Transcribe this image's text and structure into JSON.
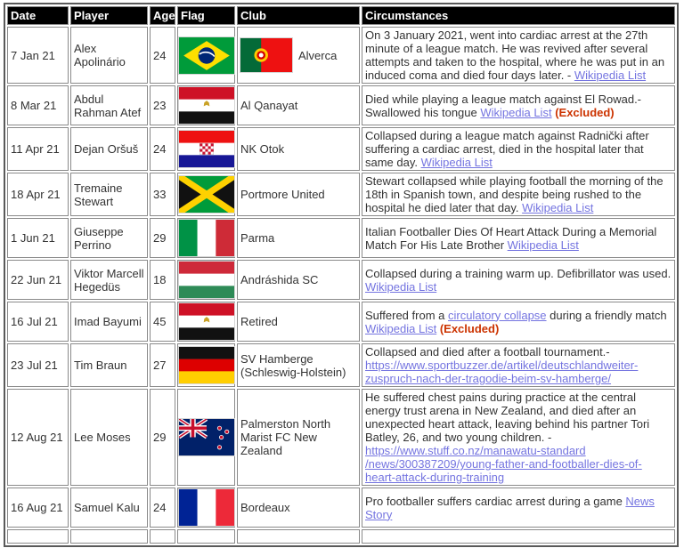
{
  "colors": {
    "link": "#7474e0",
    "excluded_text": "#cc3300",
    "header_bg": "#000000",
    "header_fg": "#ffffff",
    "cell_border": "#8a8a8a"
  },
  "table": {
    "headers": [
      "Date",
      "Player",
      "Age",
      "Flag",
      "Club",
      "Circumstances"
    ],
    "rows": [
      {
        "date": "7 Jan 21",
        "player": "Alex Apolinário",
        "age": "24",
        "flag": "brazil",
        "club_flag": "portugal",
        "club": "Alverca",
        "circumstances": [
          {
            "t": "On 3 January 2021, went into cardiac arrest at the 27th minute of a league match. He was revived after several attempts and taken to the hospital, where he was put in an induced coma and died four days later. - "
          },
          {
            "t": "Wikipedia List",
            "link": true
          }
        ]
      },
      {
        "date": "8 Mar 21",
        "player": "Abdul Rahman Atef",
        "age": "23",
        "flag": "egypt",
        "club": "Al Qanayat",
        "circumstances": [
          {
            "t": "Died while playing a league match against El Rowad.- Swallowed his tongue "
          },
          {
            "t": "Wikipedia List",
            "link": true
          },
          {
            "t": " "
          },
          {
            "t": "(Excluded)",
            "excluded": true
          }
        ]
      },
      {
        "date": "11 Apr 21",
        "player": "Dejan Oršuš",
        "age": "24",
        "flag": "croatia",
        "club": "NK Otok",
        "circumstances": [
          {
            "t": "Collapsed during a league match against Radnički after suffering a cardiac arrest, died in the hospital later that same day. "
          },
          {
            "t": "Wikipedia List",
            "link": true
          }
        ]
      },
      {
        "date": "18 Apr 21",
        "player": "Tremaine Stewart",
        "age": "33",
        "flag": "jamaica",
        "club": "Portmore United",
        "circumstances": [
          {
            "t": "Stewart collapsed while playing football the morning of the 18th in Spanish town, and despite being rushed to the hospital he died later that day. "
          },
          {
            "t": "Wikipedia List",
            "link": true
          }
        ]
      },
      {
        "date": "1 Jun 21",
        "player": "Giuseppe Perrino",
        "age": "29",
        "flag": "italy",
        "club": "Parma",
        "circumstances": [
          {
            "t": "Italian Footballer Dies Of Heart Attack During a Memorial Match For His Late Brother "
          },
          {
            "t": "Wikipedia List",
            "link": true
          }
        ]
      },
      {
        "date": "22 Jun 21",
        "player": "Viktor Marcell Hegedüs",
        "age": "18",
        "flag": "hungary",
        "club": "Andráshida SC",
        "circumstances": [
          {
            "t": "Collapsed during a training warm up. Defibrillator was used. "
          },
          {
            "t": "Wikipedia List",
            "link": true
          }
        ]
      },
      {
        "date": "16 Jul 21",
        "player": "Imad Bayumi",
        "age": "45",
        "flag": "egypt",
        "club": "Retired",
        "circumstances": [
          {
            "t": "Suffered from a "
          },
          {
            "t": "circulatory collapse",
            "link": true
          },
          {
            "t": " during a friendly match "
          },
          {
            "t": "Wikipedia List",
            "link": true
          },
          {
            "t": " "
          },
          {
            "t": "(Excluded)",
            "excluded": true
          }
        ]
      },
      {
        "date": "23 Jul 21",
        "player": "Tim Braun",
        "age": "27",
        "flag": "germany",
        "club": "SV Hamberge (Schleswig-Holstein)",
        "circumstances": [
          {
            "t": "Collapsed and died after a football tournament.- "
          },
          {
            "t": "https://www.sportbuzzer.de/artikel/deutschlandweiter-zuspruch-nach-der-tragodie-beim-sv-hamberge/",
            "link": true
          }
        ]
      },
      {
        "date": "12 Aug 21",
        "player": "Lee Moses",
        "age": "29",
        "flag": "newzealand",
        "club": "Palmerston North Marist FC New Zealand",
        "circumstances": [
          {
            "t": "He suffered chest pains during practice at the central energy trust arena in New Zealand, and died after an unexpected heart attack, leaving behind his partner Tori Batley, 26, and two young children.  - "
          },
          {
            "t": "https://www.stuff.co.nz/manawatu-standard /news/300387209/young-father-and-footballer-dies-of-heart-attack-during-training",
            "link": true
          }
        ]
      },
      {
        "date": "16 Aug 21",
        "player": "Samuel Kalu",
        "age": "24",
        "flag": "france",
        "club": "Bordeaux",
        "circumstances": [
          {
            "t": "Pro footballer suffers cardiac arrest during a game  "
          },
          {
            "t": "News Story",
            "link": true
          }
        ]
      }
    ]
  }
}
